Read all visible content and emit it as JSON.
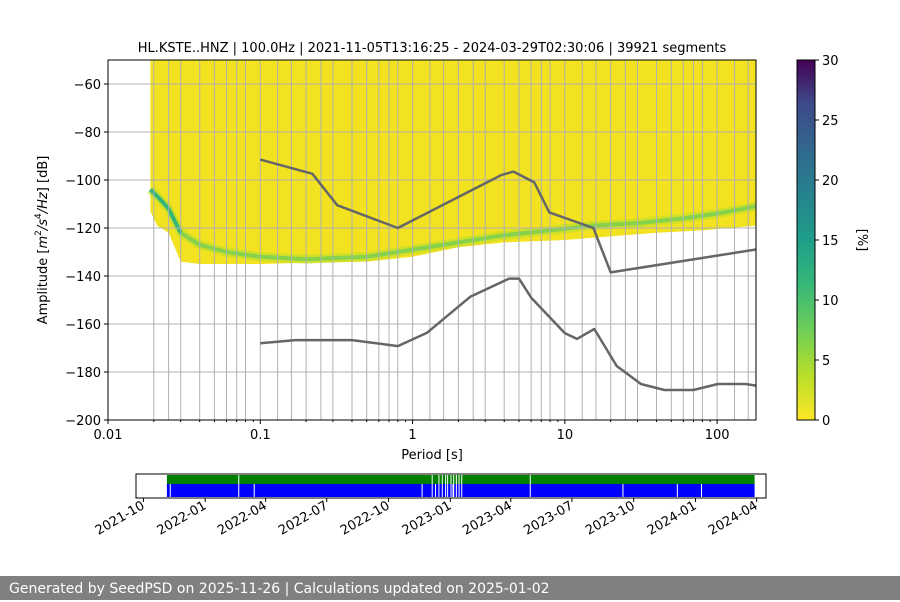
{
  "chart_data": [
    {
      "type": "heatmap",
      "title": "HL.KSTE..HNZ | 100.0Hz | 2021-11-05T13:16:25 - 2024-03-29T02:30:06 | 39921 segments",
      "xlabel": "Period [s]",
      "ylabel_parts": [
        "Amplitude [",
        "m",
        "2",
        "/",
        "s",
        "4",
        "/",
        "Hz",
        "] [dB]"
      ],
      "x_scale": "log",
      "xlim": [
        0.01,
        180
      ],
      "ylim": [
        -200,
        -50
      ],
      "x_tick_values": [
        0.01,
        0.1,
        1,
        10,
        100
      ],
      "x_tick_labels": [
        "0.01",
        "0.1",
        "1",
        "10",
        "100"
      ],
      "y_ticks": [
        -60,
        -80,
        -100,
        -120,
        -140,
        -160,
        -180,
        -200
      ],
      "y_tick_labels": [
        "−60",
        "−80",
        "−100",
        "−120",
        "−140",
        "−160",
        "−180",
        "−200"
      ],
      "grid": true,
      "colorbar": {
        "label": "[%]",
        "range": [
          0,
          30
        ],
        "ticks": [
          0,
          5,
          10,
          15,
          20,
          25,
          30
        ],
        "tick_labels": [
          "0",
          "5",
          "10",
          "15",
          "20",
          "25",
          "30"
        ],
        "colormap": "viridis"
      },
      "period_gridlines": [
        0.02,
        0.025,
        0.03,
        0.04,
        0.05,
        0.06,
        0.07,
        0.08,
        0.1,
        0.13,
        0.16,
        0.2,
        0.25,
        0.3,
        0.4,
        0.5,
        0.6,
        0.7,
        0.8,
        1,
        1.3,
        1.6,
        2,
        2.5,
        3,
        4,
        5,
        6,
        7,
        8,
        10,
        13,
        16,
        20,
        25,
        30,
        40,
        50,
        60,
        70,
        80,
        100,
        130,
        160
      ],
      "psd_lower_edge": [
        [
          0.019,
          -113
        ],
        [
          0.021,
          -119
        ],
        [
          0.025,
          -122
        ],
        [
          0.03,
          -134
        ],
        [
          0.04,
          -135
        ],
        [
          0.05,
          -135
        ],
        [
          0.1,
          -135
        ],
        [
          0.2,
          -134.5
        ],
        [
          0.5,
          -134
        ],
        [
          1,
          -132
        ],
        [
          2,
          -128
        ],
        [
          4,
          -126
        ],
        [
          10,
          -125
        ],
        [
          20,
          -123.5
        ],
        [
          40,
          -122
        ],
        [
          80,
          -121
        ],
        [
          180,
          -119
        ]
      ],
      "mode_band": [
        [
          0.019,
          -104
        ],
        [
          0.022,
          -108
        ],
        [
          0.025,
          -112
        ],
        [
          0.03,
          -122
        ],
        [
          0.04,
          -127
        ],
        [
          0.06,
          -130
        ],
        [
          0.1,
          -132
        ],
        [
          0.2,
          -133
        ],
        [
          0.5,
          -132
        ],
        [
          1,
          -129
        ],
        [
          2,
          -126
        ],
        [
          4,
          -123
        ],
        [
          8,
          -121
        ],
        [
          15,
          -119
        ],
        [
          30,
          -118
        ],
        [
          60,
          -116
        ],
        [
          100,
          -114
        ],
        [
          180,
          -111
        ]
      ],
      "nhnm": [
        [
          0.1,
          -91.5
        ],
        [
          0.22,
          -97.4
        ],
        [
          0.32,
          -110.5
        ],
        [
          0.8,
          -120
        ],
        [
          3.8,
          -98
        ],
        [
          4.6,
          -96.5
        ],
        [
          6.3,
          -101
        ],
        [
          7.9,
          -113.5
        ],
        [
          15.4,
          -120
        ],
        [
          20,
          -138.5
        ],
        [
          354.8,
          -126
        ]
      ],
      "nlnm": [
        [
          0.1,
          -168
        ],
        [
          0.17,
          -166.7
        ],
        [
          0.4,
          -166.7
        ],
        [
          0.8,
          -169.2
        ],
        [
          1.24,
          -163.7
        ],
        [
          2.4,
          -148.6
        ],
        [
          4.3,
          -141.1
        ],
        [
          5,
          -141.1
        ],
        [
          6,
          -149
        ],
        [
          10,
          -163.8
        ],
        [
          12,
          -166.2
        ],
        [
          15.6,
          -162.1
        ],
        [
          21.9,
          -177.5
        ],
        [
          31.6,
          -185
        ],
        [
          45,
          -187.5
        ],
        [
          70,
          -187.5
        ],
        [
          101,
          -185
        ],
        [
          154,
          -185
        ],
        [
          180,
          -185.7
        ]
      ]
    },
    {
      "type": "timeline",
      "x_tick_labels": [
        "2021-10",
        "2022-01",
        "2022-04",
        "2022-07",
        "2022-10",
        "2023-01",
        "2023-04",
        "2023-07",
        "2023-10",
        "2024-01",
        "2024-04"
      ],
      "x_tick_dates": [
        "2021-10-01",
        "2022-01-01",
        "2022-04-01",
        "2022-07-01",
        "2022-10-01",
        "2023-01-01",
        "2023-04-01",
        "2023-07-01",
        "2023-10-01",
        "2024-01-01",
        "2024-04-01"
      ],
      "xlim": [
        "2021-09-20",
        "2024-04-15"
      ],
      "data_start": "2021-11-05",
      "data_end": "2024-03-29",
      "series": [
        {
          "name": "green",
          "color": "#008000"
        },
        {
          "name": "blue",
          "color": "#0000ff"
        }
      ],
      "green_gaps": [
        "2022-02-20",
        "2022-12-05",
        "2022-12-15",
        "2022-12-20",
        "2022-12-25",
        "2022-12-28",
        "2023-01-02",
        "2023-01-06",
        "2023-01-10",
        "2023-01-14",
        "2023-01-18",
        "2023-04-30"
      ],
      "blue_gaps": [
        "2021-11-10",
        "2022-03-15",
        "2022-11-20",
        "2022-12-10",
        "2023-01-05",
        "2023-09-15",
        "2023-12-05",
        "2024-01-10"
      ]
    }
  ],
  "footer": "Generated by SeedPSD on 2025-11-26 | Calculations updated on 2025-01-02",
  "colors": {
    "grid": "#b0b0b0",
    "model_lines": "#666666",
    "footer_bg": "#808080"
  }
}
